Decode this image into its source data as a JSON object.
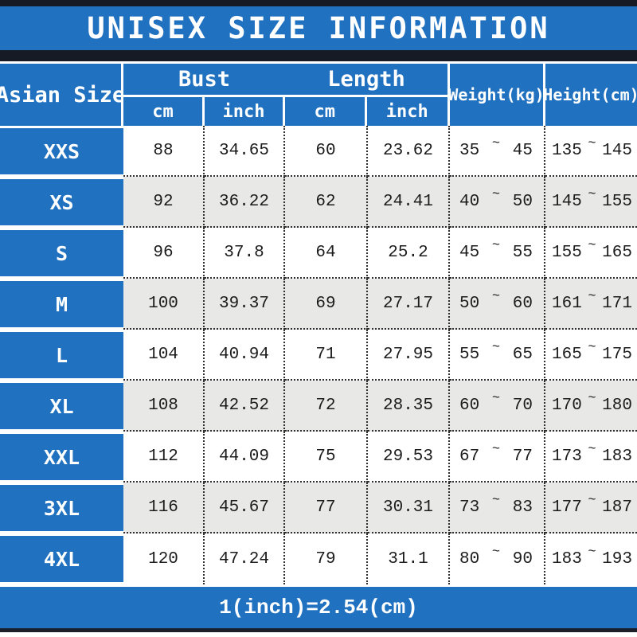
{
  "title": "UNISEX SIZE INFORMATION",
  "footer_note": "1(inch)=2.54(cm)",
  "range_separator": "~",
  "colors": {
    "accent_blue": "#2171c1",
    "dark_band": "#151a24",
    "alt_row_gray": "#e8e8e6",
    "text_on_blue": "#ffffff",
    "data_text": "#1c1c1c"
  },
  "table": {
    "size_column_header": "Asian Size",
    "groups": [
      {
        "label": "Bust",
        "sub": [
          "cm",
          "inch"
        ]
      },
      {
        "label": "Length",
        "sub": [
          "cm",
          "inch"
        ]
      }
    ],
    "weight_header": "Weight(kg)",
    "height_header": "Height(cm)",
    "rows": [
      {
        "size": "XXS",
        "bust_cm": "88",
        "bust_inch": "34.65",
        "length_cm": "60",
        "length_inch": "23.62",
        "weight_min": "35",
        "weight_max": "45",
        "height_min": "135",
        "height_max": "145"
      },
      {
        "size": "XS",
        "bust_cm": "92",
        "bust_inch": "36.22",
        "length_cm": "62",
        "length_inch": "24.41",
        "weight_min": "40",
        "weight_max": "50",
        "height_min": "145",
        "height_max": "155"
      },
      {
        "size": "S",
        "bust_cm": "96",
        "bust_inch": "37.8",
        "length_cm": "64",
        "length_inch": "25.2",
        "weight_min": "45",
        "weight_max": "55",
        "height_min": "155",
        "height_max": "165"
      },
      {
        "size": "M",
        "bust_cm": "100",
        "bust_inch": "39.37",
        "length_cm": "69",
        "length_inch": "27.17",
        "weight_min": "50",
        "weight_max": "60",
        "height_min": "161",
        "height_max": "171"
      },
      {
        "size": "L",
        "bust_cm": "104",
        "bust_inch": "40.94",
        "length_cm": "71",
        "length_inch": "27.95",
        "weight_min": "55",
        "weight_max": "65",
        "height_min": "165",
        "height_max": "175"
      },
      {
        "size": "XL",
        "bust_cm": "108",
        "bust_inch": "42.52",
        "length_cm": "72",
        "length_inch": "28.35",
        "weight_min": "60",
        "weight_max": "70",
        "height_min": "170",
        "height_max": "180"
      },
      {
        "size": "XXL",
        "bust_cm": "112",
        "bust_inch": "44.09",
        "length_cm": "75",
        "length_inch": "29.53",
        "weight_min": "67",
        "weight_max": "77",
        "height_min": "173",
        "height_max": "183"
      },
      {
        "size": "3XL",
        "bust_cm": "116",
        "bust_inch": "45.67",
        "length_cm": "77",
        "length_inch": "30.31",
        "weight_min": "73",
        "weight_max": "83",
        "height_min": "177",
        "height_max": "187"
      },
      {
        "size": "4XL",
        "bust_cm": "120",
        "bust_inch": "47.24",
        "length_cm": "79",
        "length_inch": "31.1",
        "weight_min": "80",
        "weight_max": "90",
        "height_min": "183",
        "height_max": "193"
      }
    ]
  }
}
